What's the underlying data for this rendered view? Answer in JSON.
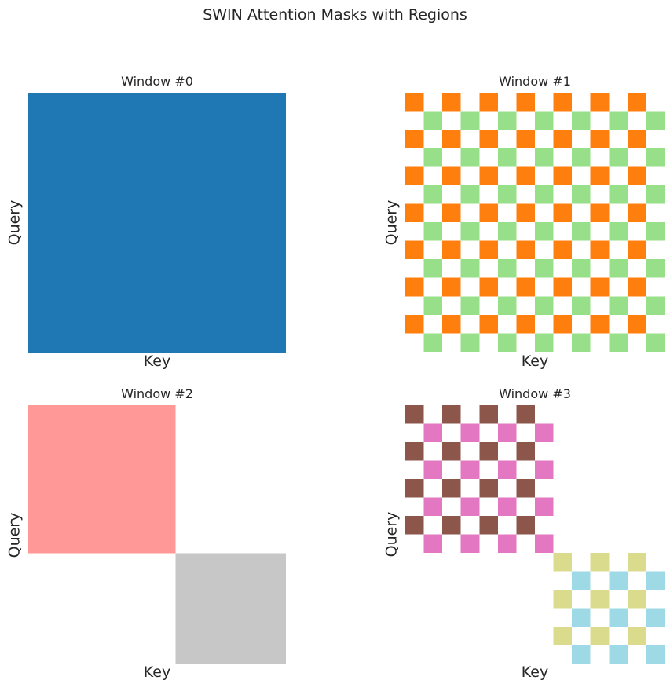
{
  "colors": {
    "background": "#ffffff",
    "text": "#262626"
  },
  "chart_data": {
    "type": "heatmap",
    "title": "SWIN Attention Masks with Regions",
    "grid": 14,
    "mask_rule": "cell (row i, col j) is filled with the region color when token_regions[i] == token_regions[j], otherwise white",
    "region_colors": {
      "0": "#1f77b4",
      "1": "#ff7f0e",
      "2": "#98df8a",
      "3": "#ff9896",
      "4": "#c7c7c7",
      "5": "#8c564b",
      "6": "#e377c2",
      "7": "#dbdb8d",
      "8": "#9edae5"
    },
    "subplots": [
      {
        "title": "Window #0",
        "xlabel": "Key",
        "ylabel": "Query",
        "token_regions": [
          0,
          0,
          0,
          0,
          0,
          0,
          0,
          0,
          0,
          0,
          0,
          0,
          0,
          0
        ]
      },
      {
        "title": "Window #1",
        "xlabel": "Key",
        "ylabel": "Query",
        "token_regions": [
          1,
          2,
          1,
          2,
          1,
          2,
          1,
          2,
          1,
          2,
          1,
          2,
          1,
          2
        ]
      },
      {
        "title": "Window #2",
        "xlabel": "Key",
        "ylabel": "Query",
        "token_regions": [
          3,
          3,
          3,
          3,
          3,
          3,
          3,
          3,
          4,
          4,
          4,
          4,
          4,
          4
        ]
      },
      {
        "title": "Window #3",
        "xlabel": "Key",
        "ylabel": "Query",
        "token_regions": [
          5,
          6,
          5,
          6,
          5,
          6,
          5,
          6,
          7,
          8,
          7,
          8,
          7,
          8
        ]
      }
    ],
    "layout_hints": {
      "rows": 2,
      "cols": 2,
      "axes_frame": false,
      "ticks": false,
      "grid_lines": false
    }
  }
}
